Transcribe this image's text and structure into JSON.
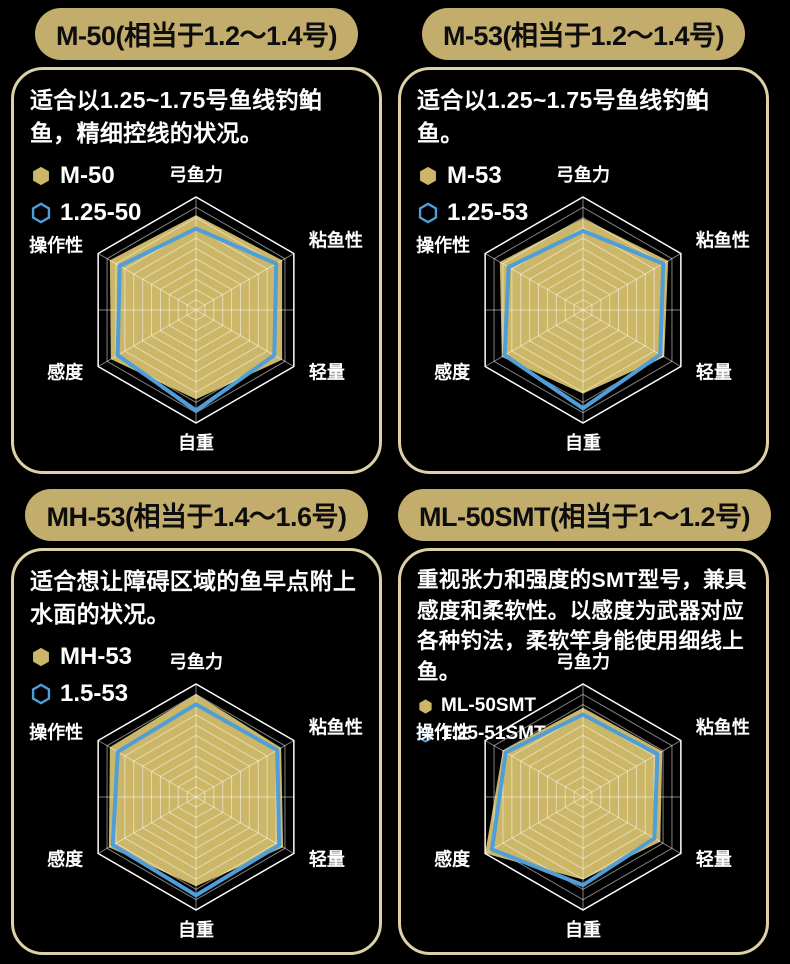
{
  "page": {
    "background": "#000000"
  },
  "colors": {
    "pill_gold": "#c3ad6c",
    "panel_border": "#ddd1a6",
    "radar_gold_fill": "#ccb667",
    "radar_blue_line": "#4f9ed8",
    "grid_line": "rgba(255,255,255,0.5)",
    "outer_border_line": "#ffffff",
    "text_white": "#ffffff",
    "title_text": "#0d0d0d"
  },
  "panels": [
    {
      "title": "M-50(相当于1.2～1.4号)",
      "description": "适合以1.25~1.75号鱼线钓鲌鱼，精细控线的状况。",
      "legend": [
        {
          "marker": "gold-hexagon",
          "label": "M-50"
        },
        {
          "marker": "blue-hexagon",
          "label": "1.25-50"
        }
      ]
    },
    {
      "title": "M-53(相当于1.2～1.4号)",
      "description": "适合以1.25~1.75号鱼线钓鲌鱼。",
      "legend": [
        {
          "marker": "gold-hexagon",
          "label": "M-53"
        },
        {
          "marker": "blue-hexagon",
          "label": "1.25-53"
        }
      ]
    },
    {
      "title": "MH-53(相当于1.4～1.6号)",
      "description": "适合想让障碍区域的鱼早点附上水面的状况。",
      "legend": [
        {
          "marker": "gold-hexagon",
          "label": "MH-53"
        },
        {
          "marker": "blue-hexagon",
          "label": "1.5-53"
        }
      ]
    },
    {
      "title": "ML-50SMT(相当于1～1.2号)",
      "description": "重视张力和强度的SMT型号，兼具感度和柔软性。以感度为武器对应各种钓法，柔软竿身能使用细线上鱼。",
      "legend": [
        {
          "marker": "gold-hexagon",
          "label": "ML-50SMT"
        },
        {
          "marker": "blue-hexagon",
          "label": "1.25-51SMT"
        }
      ]
    }
  ],
  "chart_data": [
    {
      "type": "radar",
      "title": "M-50",
      "axes": [
        "弓鱼力",
        "粘鱼性",
        "轻量",
        "自重",
        "感度",
        "操作性"
      ],
      "ring_count": 11,
      "value_range": [
        0,
        1
      ],
      "legend_position": "top-left",
      "series": [
        {
          "name": "M-50",
          "style": "gold-area",
          "values": [
            0.84,
            0.88,
            0.88,
            0.79,
            0.87,
            0.88
          ]
        },
        {
          "name": "1.25-50",
          "style": "blue-outline",
          "values": [
            0.72,
            0.82,
            0.8,
            0.89,
            0.8,
            0.78
          ]
        }
      ]
    },
    {
      "type": "radar",
      "title": "M-53",
      "axes": [
        "弓鱼力",
        "粘鱼性",
        "轻量",
        "自重",
        "感度",
        "操作性"
      ],
      "ring_count": 11,
      "value_range": [
        0,
        1
      ],
      "legend_position": "top-left",
      "series": [
        {
          "name": "M-53",
          "style": "gold-area",
          "values": [
            0.81,
            0.87,
            0.83,
            0.74,
            0.83,
            0.85
          ]
        },
        {
          "name": "1.25-53",
          "style": "blue-outline",
          "values": [
            0.7,
            0.82,
            0.79,
            0.87,
            0.8,
            0.76
          ]
        }
      ]
    },
    {
      "type": "radar",
      "title": "MH-53",
      "axes": [
        "弓鱼力",
        "粘鱼性",
        "轻量",
        "自重",
        "感度",
        "操作性"
      ],
      "ring_count": 11,
      "value_range": [
        0,
        1
      ],
      "legend_position": "top-left",
      "series": [
        {
          "name": "MH-53",
          "style": "gold-area",
          "values": [
            0.91,
            0.87,
            0.89,
            0.79,
            0.89,
            0.88
          ]
        },
        {
          "name": "1.5-53",
          "style": "blue-outline",
          "values": [
            0.82,
            0.83,
            0.85,
            0.87,
            0.85,
            0.8
          ]
        }
      ]
    },
    {
      "type": "radar",
      "title": "ML-50SMT",
      "axes": [
        "弓鱼力",
        "粘鱼性",
        "轻量",
        "自重",
        "感度",
        "操作性"
      ],
      "ring_count": 11,
      "value_range": [
        0,
        1
      ],
      "legend_position": "top-left",
      "series": [
        {
          "name": "ML-50SMT",
          "style": "gold-area",
          "values": [
            0.79,
            0.81,
            0.79,
            0.73,
            1.0,
            0.82
          ]
        },
        {
          "name": "1.25-51SMT",
          "style": "blue-outline",
          "values": [
            0.73,
            0.76,
            0.73,
            0.78,
            0.93,
            0.79
          ]
        }
      ]
    }
  ]
}
